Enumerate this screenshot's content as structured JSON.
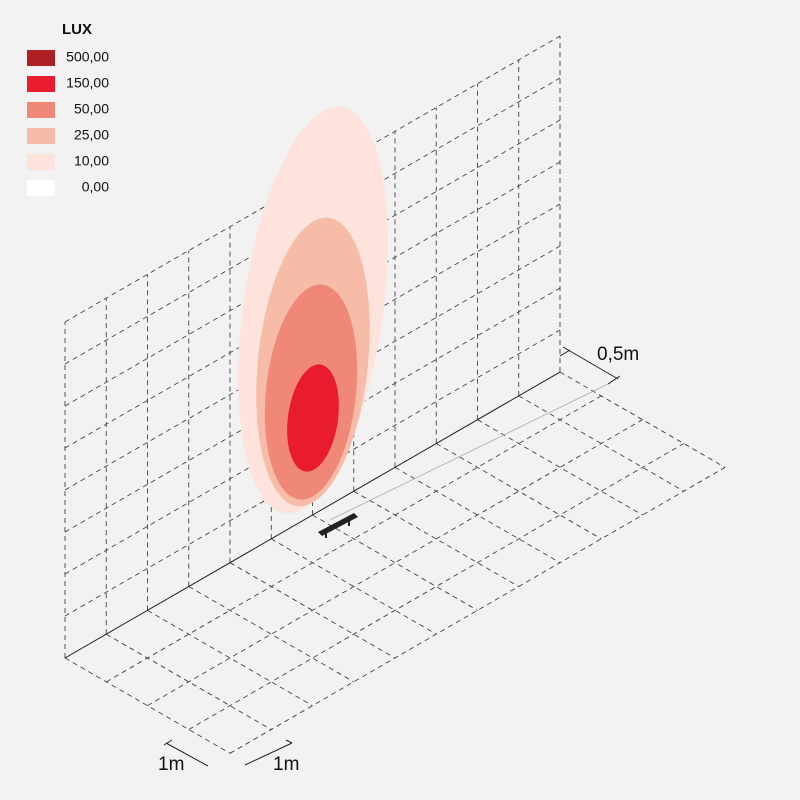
{
  "legend": {
    "title": "LUX",
    "items": [
      {
        "label": "500,00",
        "color": "#b01f24"
      },
      {
        "label": "150,00",
        "color": "#e81c2e"
      },
      {
        "label": "50,00",
        "color": "#f08878"
      },
      {
        "label": "25,00",
        "color": "#f6bca8"
      },
      {
        "label": "10,00",
        "color": "#fde3db"
      },
      {
        "label": "0,00",
        "color": "#ffffff"
      }
    ]
  },
  "dimensions": [
    {
      "label": "0,5m"
    },
    {
      "label": "1m"
    },
    {
      "label": "1m"
    }
  ]
}
